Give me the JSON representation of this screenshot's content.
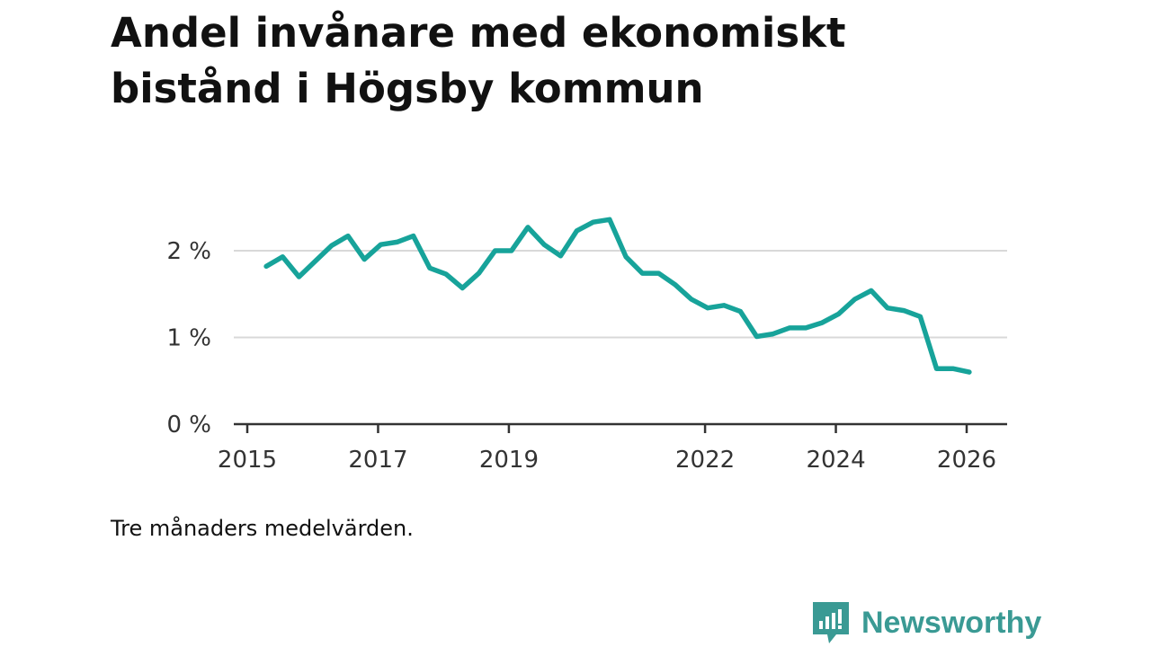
{
  "chart_data": {
    "type": "line",
    "title": "Andel invånare med ekonomiskt bistånd i Högsby kommun",
    "xlabel": "",
    "ylabel": "",
    "y_unit": "%",
    "ylim": [
      0,
      2.4
    ],
    "y_ticks": [
      0,
      1,
      2
    ],
    "y_tick_labels": [
      "0 %",
      "1 %",
      "2 %"
    ],
    "x_range": [
      2015,
      2026.4
    ],
    "x_ticks": [
      2015,
      2017,
      2019,
      2022,
      2024,
      2026
    ],
    "x_tick_labels": [
      "2015",
      "2017",
      "2019",
      "2022",
      "2024",
      "2026"
    ],
    "grid": true,
    "series": [
      {
        "name": "Andel invånare med ekonomiskt bistånd",
        "color": "#17a39a",
        "x": [
          2015.29,
          2015.54,
          2015.79,
          2016.04,
          2016.29,
          2016.54,
          2016.79,
          2017.04,
          2017.29,
          2017.54,
          2017.79,
          2018.04,
          2018.29,
          2018.54,
          2018.79,
          2019.04,
          2019.29,
          2019.54,
          2019.79,
          2020.04,
          2020.29,
          2020.54,
          2020.79,
          2021.04,
          2021.29,
          2021.54,
          2021.79,
          2022.04,
          2022.29,
          2022.54,
          2022.79,
          2023.04,
          2023.29,
          2023.54,
          2023.79,
          2024.04,
          2024.29,
          2024.54,
          2024.79,
          2025.04,
          2025.29,
          2025.54,
          2025.79,
          2026.04
        ],
        "values": [
          1.82,
          1.93,
          1.7,
          1.88,
          2.06,
          2.17,
          1.9,
          2.07,
          2.1,
          2.17,
          1.8,
          1.73,
          1.57,
          1.74,
          2.0,
          2.0,
          2.27,
          2.07,
          1.94,
          2.23,
          2.33,
          2.36,
          1.93,
          1.74,
          1.74,
          1.61,
          1.44,
          1.34,
          1.37,
          1.3,
          1.01,
          1.04,
          1.11,
          1.11,
          1.17,
          1.27,
          1.44,
          1.54,
          1.34,
          1.31,
          1.24,
          0.64,
          0.64,
          0.6
        ]
      }
    ]
  },
  "note": "Tre månaders medelvärden.",
  "brand": {
    "name": "Newsworthy",
    "icon": "newsworthy-logo-icon",
    "color": "#3a9a94"
  }
}
